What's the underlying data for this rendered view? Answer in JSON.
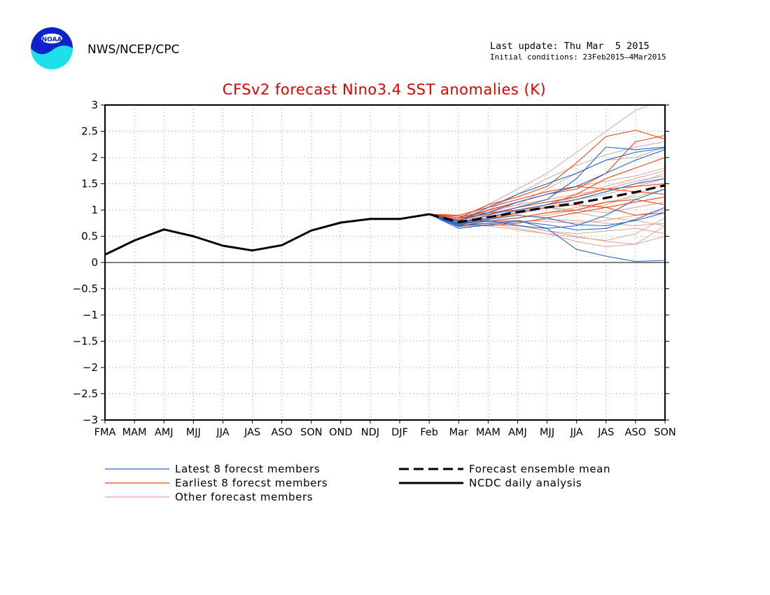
{
  "header": {
    "agency": "NWS/NCEP/CPC",
    "last_update": "Last update: Thu Mar  5 2015",
    "initial_conditions": "Initial conditions: 23Feb2015–4Mar2015",
    "logo_text": "NOAA"
  },
  "colors": {
    "title": "#e00000",
    "latest": "#2266cc",
    "earliest": "#ee4411",
    "other": "#d9a69a",
    "analysis": "#000000",
    "mean": "#000000"
  },
  "chart_data": {
    "type": "line",
    "title": "CFSv2 forecast Nino3.4 SST anomalies (K)",
    "categories": [
      "FMA",
      "MAM",
      "AMJ",
      "MJJ",
      "JJA",
      "JAS",
      "ASO",
      "SON",
      "OND",
      "NDJ",
      "DJF",
      "Feb",
      "Mar",
      "MAM",
      "AMJ",
      "MJJ",
      "JJA",
      "JAS",
      "ASO",
      "SON"
    ],
    "ylim": [
      -3,
      3
    ],
    "yticks": [
      3,
      2.5,
      2,
      1.5,
      1,
      0.5,
      0,
      -0.5,
      -1,
      -1.5,
      -2,
      -2.5,
      -3
    ],
    "ytick_labels": [
      "3",
      "2.5",
      "2",
      "1.5",
      "1",
      "0.5",
      "0",
      "−0.5",
      "−1",
      "−1.5",
      "−2",
      "−2.5",
      "−3"
    ],
    "grid": true,
    "legend": [
      {
        "label": "Latest 8 forecst members",
        "style": "thin-blue"
      },
      {
        "label": "Earliest 8 forecst members",
        "style": "thin-red"
      },
      {
        "label": "Other forecast members",
        "style": "thin-pink"
      },
      {
        "label": "Forecast ensemble mean",
        "style": "dashed-black"
      },
      {
        "label": "NCDC daily analysis",
        "style": "solid-black"
      }
    ],
    "analysis": {
      "name": "NCDC daily analysis",
      "start_index": 0,
      "values": [
        0.15,
        0.42,
        0.63,
        0.5,
        0.32,
        0.23,
        0.33,
        0.61,
        0.76,
        0.83,
        0.83,
        0.92
      ]
    },
    "ensemble_mean": {
      "name": "Forecast ensemble mean",
      "start_index": 11,
      "values": [
        0.92,
        0.77,
        0.86,
        0.96,
        1.05,
        1.13,
        1.23,
        1.34,
        1.47
      ]
    },
    "latest_members": [
      [
        0.92,
        0.65,
        0.72,
        0.78,
        0.72,
        0.62,
        0.65,
        0.82,
        1.05
      ],
      [
        0.92,
        0.7,
        0.75,
        0.8,
        0.65,
        0.25,
        0.12,
        0.02,
        0.04
      ],
      [
        0.92,
        0.72,
        0.82,
        0.9,
        0.85,
        0.72,
        0.7,
        0.8,
        0.95
      ],
      [
        0.92,
        0.8,
        0.95,
        1.15,
        1.3,
        1.45,
        1.7,
        1.95,
        2.15
      ],
      [
        0.92,
        0.78,
        1.05,
        1.3,
        1.5,
        1.7,
        1.95,
        2.1,
        2.18
      ],
      [
        0.92,
        0.68,
        0.8,
        0.7,
        0.65,
        0.7,
        0.9,
        1.2,
        1.4
      ],
      [
        0.92,
        0.73,
        0.85,
        1.0,
        1.1,
        1.2,
        1.35,
        1.5,
        1.6
      ],
      [
        0.92,
        0.75,
        0.9,
        1.05,
        1.2,
        1.6,
        2.2,
        2.15,
        2.2
      ]
    ],
    "earliest_members": [
      [
        0.92,
        0.85,
        1.1,
        1.25,
        1.45,
        1.9,
        2.4,
        2.52,
        2.35
      ],
      [
        0.92,
        0.82,
        1.0,
        1.15,
        1.3,
        1.4,
        1.7,
        2.3,
        2.42
      ],
      [
        0.92,
        0.88,
        0.95,
        1.0,
        1.1,
        1.3,
        1.6,
        1.8,
        2.0
      ],
      [
        0.92,
        0.75,
        0.82,
        0.95,
        1.05,
        1.1,
        1.05,
        0.9,
        0.95
      ],
      [
        0.92,
        0.9,
        1.05,
        1.2,
        1.35,
        1.45,
        1.4,
        1.45,
        1.5
      ],
      [
        0.92,
        0.8,
        0.78,
        0.85,
        0.95,
        1.0,
        1.15,
        1.2,
        1.1
      ],
      [
        0.92,
        0.72,
        0.7,
        0.75,
        0.85,
        0.95,
        1.05,
        1.15,
        1.25
      ],
      [
        0.92,
        0.85,
        0.92,
        1.05,
        1.15,
        1.25,
        1.4,
        1.35,
        1.3
      ]
    ],
    "other_members": [
      [
        0.92,
        0.8,
        1.1,
        1.4,
        1.7,
        2.1,
        2.5,
        2.9,
        3.1
      ],
      [
        0.92,
        0.78,
        1.0,
        1.3,
        1.6,
        1.85,
        2.05,
        2.2,
        2.3
      ],
      [
        0.92,
        0.75,
        0.95,
        1.1,
        1.4,
        1.7,
        1.95,
        2.0,
        2.2
      ],
      [
        0.92,
        0.7,
        0.72,
        0.7,
        0.6,
        0.5,
        0.4,
        0.35,
        0.5
      ],
      [
        0.92,
        0.72,
        0.75,
        0.65,
        0.55,
        0.4,
        0.3,
        0.35,
        0.7
      ],
      [
        0.92,
        0.68,
        0.7,
        0.62,
        0.55,
        0.48,
        0.42,
        0.55,
        0.85
      ],
      [
        0.92,
        0.7,
        0.8,
        0.85,
        0.9,
        1.0,
        1.1,
        1.3,
        1.5
      ],
      [
        0.92,
        0.76,
        0.82,
        0.92,
        1.05,
        1.2,
        1.35,
        1.5,
        1.7
      ],
      [
        0.92,
        0.78,
        0.88,
        0.98,
        1.1,
        1.2,
        1.3,
        1.45,
        1.6
      ],
      [
        0.92,
        0.74,
        0.78,
        0.8,
        0.78,
        0.75,
        0.8,
        0.9,
        1.0
      ],
      [
        0.92,
        0.8,
        0.92,
        1.0,
        1.05,
        1.0,
        0.95,
        1.05,
        1.15
      ],
      [
        0.92,
        0.82,
        0.98,
        1.15,
        1.3,
        1.45,
        1.55,
        1.65,
        1.8
      ],
      [
        0.92,
        0.7,
        0.75,
        0.78,
        0.82,
        0.8,
        0.75,
        0.7,
        0.75
      ],
      [
        0.92,
        0.77,
        0.85,
        0.95,
        1.1,
        1.25,
        1.45,
        1.6,
        1.75
      ],
      [
        0.92,
        0.73,
        0.78,
        0.85,
        0.95,
        1.05,
        1.15,
        1.25,
        1.4
      ],
      [
        0.92,
        0.85,
        1.0,
        1.1,
        1.2,
        1.3,
        1.4,
        1.55,
        1.65
      ],
      [
        0.92,
        0.75,
        0.8,
        0.72,
        0.6,
        0.55,
        0.6,
        0.65,
        0.55
      ],
      [
        0.92,
        0.72,
        0.85,
        1.0,
        1.05,
        0.95,
        0.85,
        0.8,
        0.7
      ]
    ]
  }
}
